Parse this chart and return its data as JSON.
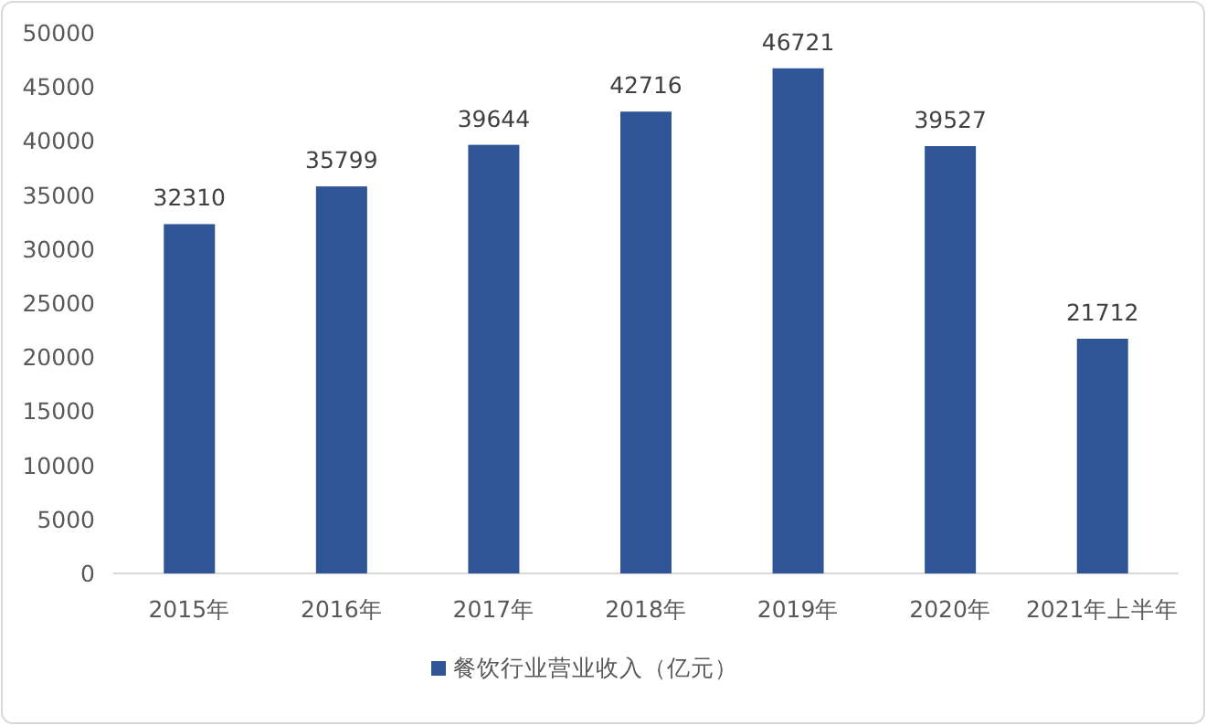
{
  "chart_data": {
    "type": "bar",
    "categories": [
      "2015年",
      "2016年",
      "2017年",
      "2018年",
      "2019年",
      "2020年",
      "2021年上半年"
    ],
    "series": [
      {
        "name": "餐饮行业营业收入（亿元）",
        "color": "#2f5597",
        "values": [
          32310,
          35799,
          39644,
          42716,
          46721,
          39527,
          21712
        ]
      }
    ],
    "ylim": [
      0,
      50000
    ],
    "yticks": [
      0,
      5000,
      10000,
      15000,
      20000,
      25000,
      30000,
      35000,
      40000,
      45000,
      50000
    ],
    "data_labels": true,
    "legend": "bottom"
  }
}
